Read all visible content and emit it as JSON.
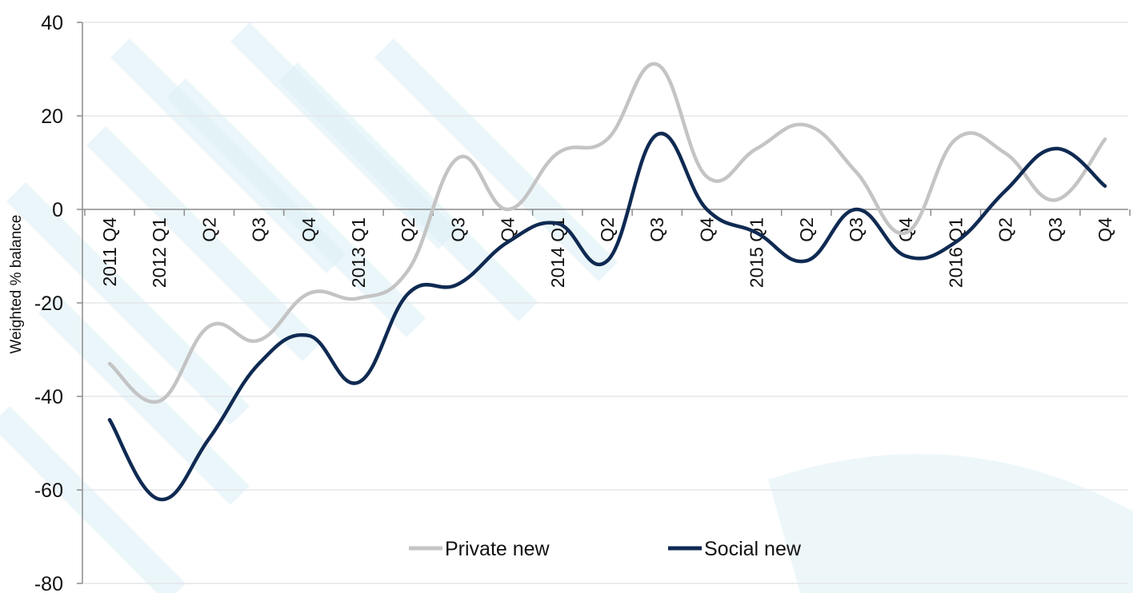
{
  "chart_data": {
    "type": "line",
    "ylabel": "Weighted % balance",
    "xlabel": "",
    "ylim": [
      -80,
      40
    ],
    "yticks": [
      40,
      20,
      0,
      -20,
      -40,
      -60,
      -80
    ],
    "grid": true,
    "legend_position": "bottom",
    "categories": [
      "2011 Q4",
      "2012 Q1",
      "Q2",
      "Q3",
      "Q4",
      "2013 Q1",
      "Q2",
      "Q3",
      "Q4",
      "2014 Q1",
      "Q2",
      "Q3",
      "Q4",
      "2015 Q1",
      "Q2",
      "Q3",
      "Q4",
      "2016 Q1",
      "Q2",
      "Q3",
      "Q4"
    ],
    "series": [
      {
        "name": "Private new",
        "color": "#c4c4c4",
        "values": [
          -33,
          -41,
          -25,
          -28,
          -18,
          -19,
          -13,
          11,
          0,
          12,
          15,
          31,
          7,
          13,
          18,
          8,
          -5,
          15,
          12,
          2,
          15
        ]
      },
      {
        "name": "Social new",
        "color": "#0f2a52",
        "values": [
          -45,
          -62,
          -49,
          -33,
          -27,
          -37,
          -18,
          -16,
          -7,
          -3,
          -11,
          16,
          0,
          -5,
          -11,
          0,
          -10,
          -7,
          4,
          13,
          5
        ]
      }
    ]
  },
  "colors": {
    "grid": "#e3e6ea",
    "axis": "#8c8c8c",
    "watermark": "#dcefF6"
  }
}
